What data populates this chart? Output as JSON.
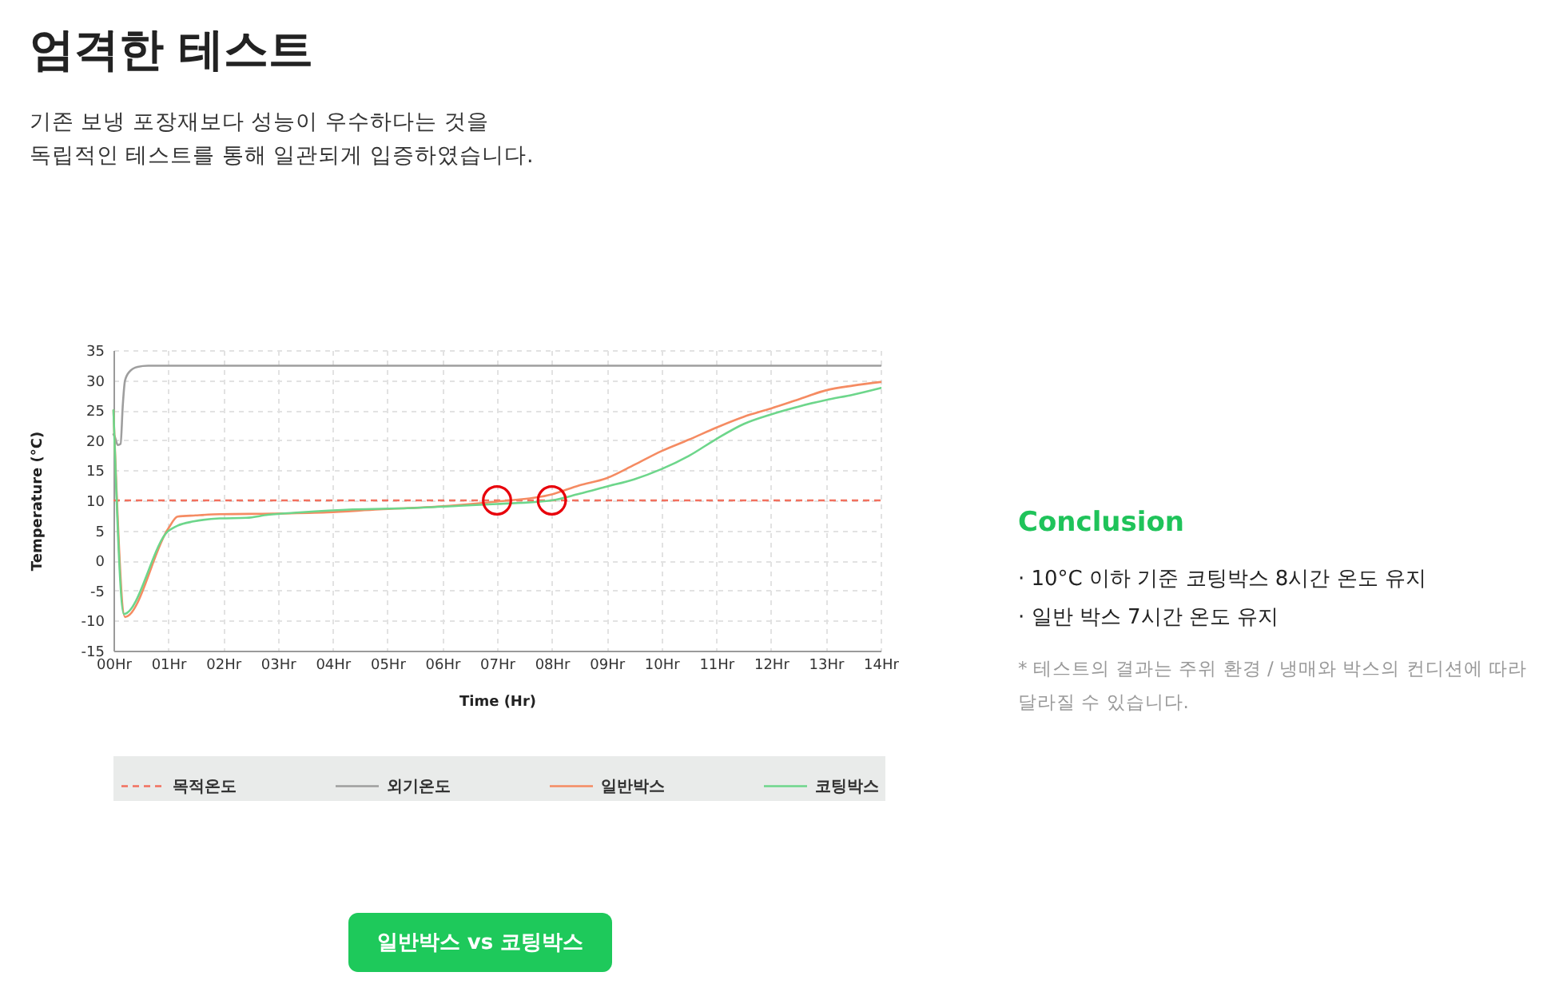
{
  "chart_data": [
    {
      "type": "line",
      "title": "엄격한 테스트",
      "subtitle": "기존 보냉 포장재보다 성능이 우수하다는 것을 독립적인 테스트를 통해 일관되게 입증하였습니다.",
      "xlabel": "Time (Hr)",
      "ylabel": "Temperature (°C)",
      "xlim": [
        0,
        14
      ],
      "ylim": [
        -15,
        35
      ],
      "xticks": [
        {
          "value": 0,
          "label": "00Hr"
        },
        {
          "value": 1,
          "label": "01Hr"
        },
        {
          "value": 2,
          "label": "02Hr"
        },
        {
          "value": 3,
          "label": "03Hr"
        },
        {
          "value": 4,
          "label": "04Hr"
        },
        {
          "value": 5,
          "label": "05Hr"
        },
        {
          "value": 6,
          "label": "06Hr"
        },
        {
          "value": 7,
          "label": "07Hr"
        },
        {
          "value": 8,
          "label": "08Hr"
        },
        {
          "value": 9,
          "label": "09Hr"
        },
        {
          "value": 10,
          "label": "10Hr"
        },
        {
          "value": 11,
          "label": "11Hr"
        },
        {
          "value": 12,
          "label": "12Hr"
        },
        {
          "value": 13,
          "label": "13Hr"
        },
        {
          "value": 14,
          "label": "14Hr"
        }
      ],
      "yticks": [
        -15,
        -10,
        -5,
        0,
        5,
        10,
        15,
        20,
        25,
        30,
        35
      ],
      "grid": true,
      "legend": "bottom",
      "ref_lines": [
        {
          "axis": "y",
          "value": 10,
          "label": "목적온도",
          "color": "#f2705e",
          "line_style": "dashed"
        }
      ],
      "series": [
        {
          "name": "외기온도",
          "type": "line",
          "color": "#9e9e9e",
          "x": [
            0,
            0.02,
            0.08,
            0.13,
            0.17,
            0.21,
            0.29,
            0.44,
            0.63,
            1,
            14
          ],
          "values": [
            21,
            20.7,
            19.2,
            19.4,
            25.8,
            29.9,
            31.4,
            32.2,
            32.4,
            32.4,
            32.4
          ]
        },
        {
          "name": "일반박스",
          "type": "line",
          "color": "#f58b62",
          "x": [
            0,
            0.21,
            1.0,
            1.17,
            1.5,
            1.94,
            2.9,
            3.9,
            4.85,
            5.8,
            7.0,
            8.0,
            8.5,
            9.0,
            9.5,
            10.0,
            10.5,
            11.0,
            11.5,
            12.0,
            12.5,
            13.0,
            13.5,
            14.0
          ],
          "values": [
            25,
            -9.4,
            5.3,
            7.3,
            7.5,
            7.7,
            7.8,
            8.0,
            8.5,
            8.9,
            9.8,
            11.0,
            12.5,
            13.7,
            15.9,
            18.2,
            20.1,
            22.1,
            23.9,
            25.3,
            26.8,
            28.3,
            29.1,
            29.7
          ]
        },
        {
          "name": "코팅박스",
          "type": "line",
          "color": "#6dd68b",
          "x": [
            0,
            0.19,
            1.0,
            1.17,
            1.46,
            1.94,
            2.43,
            2.82,
            3.4,
            4.37,
            5.34,
            6.31,
            7.0,
            8.0,
            8.5,
            9.0,
            9.5,
            10.0,
            10.5,
            11.0,
            11.5,
            12.0,
            12.5,
            13.0,
            13.5,
            14.0
          ],
          "values": [
            25,
            -8.9,
            4.9,
            5.8,
            6.5,
            7.0,
            7.1,
            7.6,
            8.0,
            8.5,
            8.7,
            9.1,
            9.4,
            10.0,
            11.1,
            12.3,
            13.5,
            15.2,
            17.4,
            20.2,
            22.7,
            24.3,
            25.6,
            26.7,
            27.6,
            28.7
          ]
        },
        {
          "type": "scatter",
          "marker": "circle",
          "color": "#e8000b",
          "x": [
            7,
            8
          ],
          "values": [
            10,
            10
          ]
        }
      ],
      "annotations": [
        "일반박스 vs 코팅박스"
      ]
    },
    {
      "type": "other",
      "title": "Conclusion",
      "annotations": [
        "· 10°C 이하 기준 코팅박스 8시간 온도 유지",
        "· 일반 박스 7시간 온도 유지",
        "* 테스트의 결과는 주위 환경 / 냉매와 박스의 컨디션에 따라 달라질 수 있습니다."
      ]
    }
  ]
}
